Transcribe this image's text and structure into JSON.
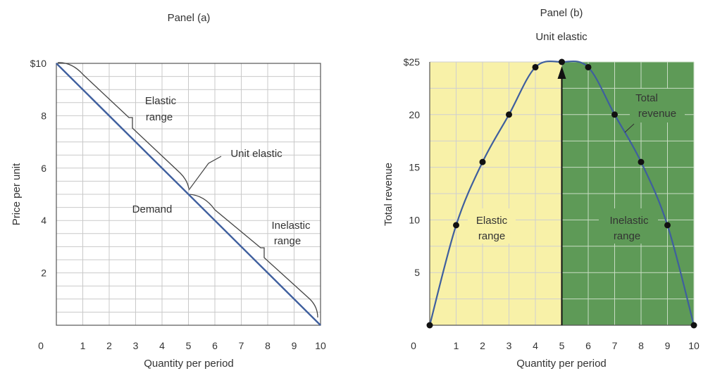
{
  "chart_data": [
    {
      "type": "line",
      "title": "Panel (a)",
      "xlabel": "Quantity per period",
      "ylabel": "Price per unit",
      "xlim": [
        0,
        10
      ],
      "ylim": [
        0,
        10
      ],
      "x_ticks": [
        "0",
        "1",
        "2",
        "3",
        "4",
        "5",
        "6",
        "7",
        "8",
        "9",
        "10"
      ],
      "y_ticks": [
        "$10",
        "8",
        "6",
        "4",
        "2"
      ],
      "grid": true,
      "series": [
        {
          "name": "Demand",
          "x": [
            0,
            10
          ],
          "y": [
            10,
            0
          ],
          "color": "#3f5f9e"
        }
      ],
      "annotations": {
        "elastic": [
          "Elastic",
          "range"
        ],
        "unit_elastic": "Unit elastic",
        "demand": "Demand",
        "inelastic": [
          "Inelastic",
          "range"
        ]
      }
    },
    {
      "type": "line",
      "title": "Panel (b)",
      "subtitle": "Unit elastic",
      "xlabel": "Quantity per period",
      "ylabel": "Total revenue",
      "xlim": [
        0,
        10
      ],
      "ylim": [
        0,
        25
      ],
      "x_ticks": [
        "0",
        "1",
        "2",
        "3",
        "4",
        "5",
        "6",
        "7",
        "8",
        "9",
        "10"
      ],
      "y_ticks": [
        "$25",
        "20",
        "15",
        "10",
        "5"
      ],
      "grid": true,
      "series": [
        {
          "name": "Total revenue",
          "x": [
            0,
            1,
            2,
            3,
            4,
            5,
            6,
            7,
            8,
            9,
            10
          ],
          "y": [
            0,
            9.5,
            15.5,
            20,
            24.5,
            25,
            24.5,
            20,
            15.5,
            9.5,
            0
          ],
          "color": "#3f5f9e"
        }
      ],
      "regions": {
        "elastic_color": "#f8f1a8",
        "inelastic_color": "#5e9a57"
      },
      "annotations": {
        "elastic": [
          "Elastic",
          "range"
        ],
        "inelastic": [
          "Inelastic",
          "range"
        ],
        "total_revenue": [
          "Total",
          "revenue"
        ]
      }
    }
  ]
}
